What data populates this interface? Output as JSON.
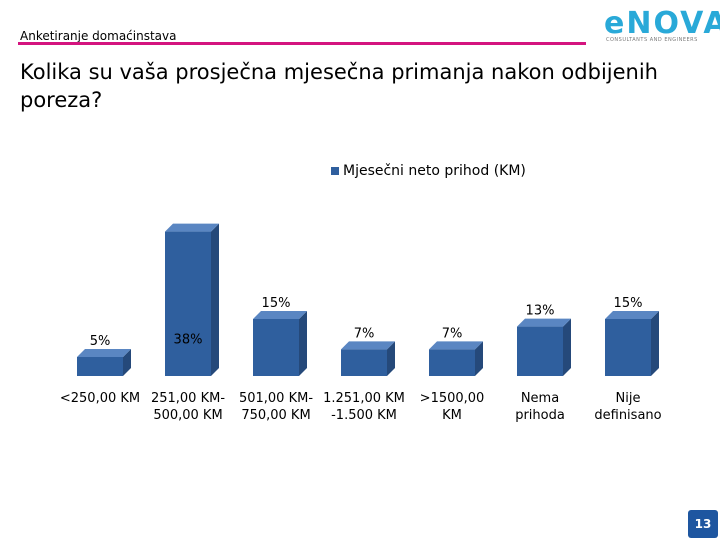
{
  "header": {
    "section_label": "Anketiranje domaćinstava",
    "logo_text": "eNOVA",
    "logo_subtitle": "CONSULTANTS AND ENGINEERS"
  },
  "slide": {
    "title": "Kolika su vaša prosječna mjesečna primanja nakon odbijenih poreza?",
    "page_number": "13"
  },
  "colors": {
    "accent_rule": "#d4147f",
    "bar_front": "#2f5f9e",
    "bar_side": "#25497a",
    "bar_top": "#5a86c2",
    "logo": "#29a9d8"
  },
  "chart_data": {
    "type": "bar",
    "legend": "Mjesečni neto prihod (KM)",
    "legend_position": "top",
    "categories": [
      [
        "<250,00 KM"
      ],
      [
        "251,00 KM-",
        "500,00 KM"
      ],
      [
        "501,00 KM-",
        "750,00 KM"
      ],
      [
        "1.251,00 KM",
        "-1.500 KM"
      ],
      [
        ">1500,00",
        "KM"
      ],
      [
        "Nema",
        "prihoda"
      ],
      [
        "Nije",
        "definisano"
      ]
    ],
    "values": [
      5,
      38,
      15,
      7,
      7,
      13,
      15
    ],
    "data_labels": [
      "5%",
      "38%",
      "15%",
      "7%",
      "7%",
      "13%",
      "15%"
    ],
    "ylim": [
      0,
      40
    ],
    "grid": false
  }
}
